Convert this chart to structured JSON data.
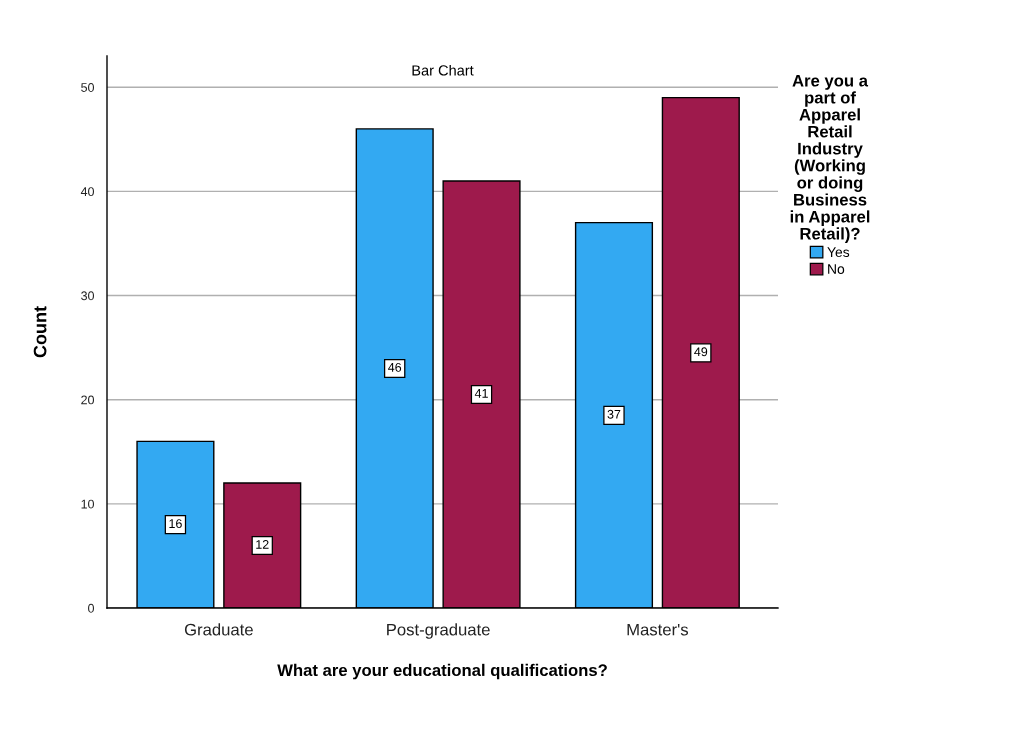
{
  "chart_data": {
    "type": "bar",
    "title": "Bar Chart",
    "xlabel": "What are your educational qualifications?",
    "ylabel": "Count",
    "legend_title": "Are you a\npart of\nApparel\nRetail\nIndustry\n(Working\nor doing\nBusiness\nin Apparel\nRetail)?",
    "categories": [
      "Graduate",
      "Post-graduate",
      "Master's"
    ],
    "series": [
      {
        "name": "Yes",
        "color": "#33a9f2",
        "values": [
          16,
          46,
          37
        ]
      },
      {
        "name": "No",
        "color": "#9e1a4c",
        "values": [
          12,
          41,
          49
        ]
      }
    ],
    "ylim": [
      0,
      53
    ],
    "yticks": [
      0,
      10,
      20,
      30,
      40,
      50
    ],
    "grid": "y",
    "legend": "right",
    "data_labels": true
  }
}
